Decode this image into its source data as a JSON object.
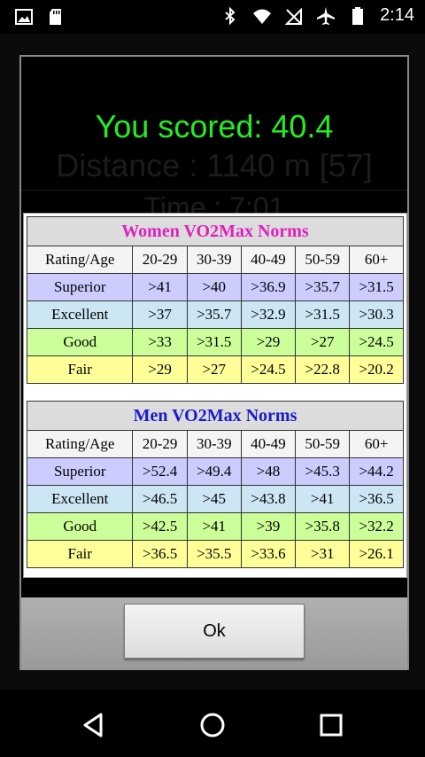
{
  "status_bar": {
    "time": "2:14",
    "icons": [
      "image-icon",
      "sd-card-icon",
      "bluetooth-icon",
      "wifi-icon",
      "no-signal-icon",
      "airplane-icon",
      "battery-icon"
    ]
  },
  "background": {
    "distance_text": "Distance : 1140 m [57]",
    "time_text": "Time : 7:01"
  },
  "dialog": {
    "score_text": "You scored: 40.4",
    "ok_label": "Ok"
  },
  "women_table": {
    "title": "Women VO2Max Norms",
    "headers": [
      "Rating/Age",
      "20-29",
      "30-39",
      "40-49",
      "50-59",
      "60+"
    ],
    "rows": [
      {
        "rating": "Superior",
        "values": [
          ">41",
          ">40",
          ">36.9",
          ">35.7",
          ">31.5"
        ]
      },
      {
        "rating": "Excellent",
        "values": [
          ">37",
          ">35.7",
          ">32.9",
          ">31.5",
          ">30.3"
        ]
      },
      {
        "rating": "Good",
        "values": [
          ">33",
          ">31.5",
          ">29",
          ">27",
          ">24.5"
        ]
      },
      {
        "rating": "Fair",
        "values": [
          ">29",
          ">27",
          ">24.5",
          ">22.8",
          ">20.2"
        ]
      }
    ]
  },
  "men_table": {
    "title": "Men VO2Max Norms",
    "headers": [
      "Rating/Age",
      "20-29",
      "30-39",
      "40-49",
      "50-59",
      "60+"
    ],
    "rows": [
      {
        "rating": "Superior",
        "values": [
          ">52.4",
          ">49.4",
          ">48",
          ">45.3",
          ">44.2"
        ]
      },
      {
        "rating": "Excellent",
        "values": [
          ">46.5",
          ">45",
          ">43.8",
          ">41",
          ">36.5"
        ]
      },
      {
        "rating": "Good",
        "values": [
          ">42.5",
          ">41",
          ">39",
          ">35.8",
          ">32.2"
        ]
      },
      {
        "rating": "Fair",
        "values": [
          ">36.5",
          ">35.5",
          ">33.6",
          ">31",
          ">26.1"
        ]
      }
    ]
  },
  "colors": {
    "score": "#22ee22",
    "women_title": "#e020c0",
    "men_title": "#1a1acd",
    "superior": "#ccccff",
    "excellent": "#cce6f4",
    "good": "#ccff99",
    "fair": "#ffff99"
  },
  "nav_bar": {
    "icons": [
      "back-icon",
      "home-icon",
      "recents-icon"
    ]
  }
}
